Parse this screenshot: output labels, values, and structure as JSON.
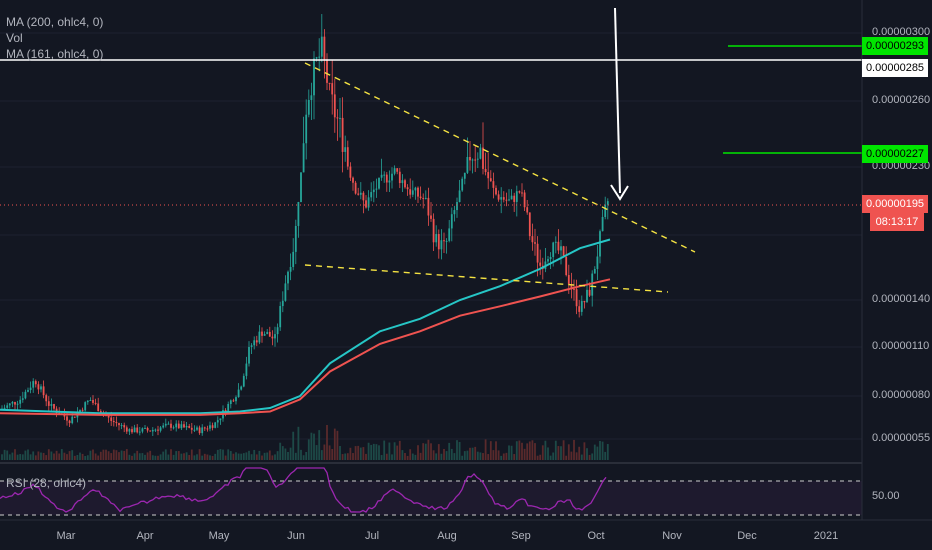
{
  "legend": {
    "ma200": "MA (200, ohlc4, 0)",
    "vol": "Vol",
    "ma161": "MA (161, ohlc4, 0)",
    "rsi": "RSI (28, ohlc4)"
  },
  "price_axis": {
    "ticks": [
      "0.00000300",
      "0.00000260",
      "0.00000230",
      "0.00000140",
      "0.00000110",
      "0.00000080",
      "0.00000055"
    ],
    "rsi_tick": "50.00"
  },
  "tags": {
    "target_high": "0.00000293",
    "resistance": "0.00000285",
    "target_mid": "0.00000227",
    "current_price": "0.00000195",
    "countdown": "08:13:17"
  },
  "time_axis": [
    "Mar",
    "Apr",
    "May",
    "Jun",
    "Jul",
    "Aug",
    "Sep",
    "Oct",
    "Nov",
    "Dec",
    "2021"
  ],
  "colors": {
    "background": "#131722",
    "up": "#26a69a",
    "down": "#ef5350",
    "ma200": "#26c6c6",
    "ma161": "#ef5350",
    "trendline": "#f5e342",
    "target": "#00e600",
    "rsi": "#9c27b0"
  },
  "chart_data": {
    "type": "line",
    "title": "",
    "x": [
      "Mar",
      "Apr",
      "May",
      "Jun",
      "Jul",
      "Aug",
      "Sep",
      "Oct"
    ],
    "series": [
      {
        "name": "price",
        "values": [
          7.4e-07,
          6.6e-07,
          7e-07,
          1.75e-06,
          1.95e-06,
          1.65e-06,
          1.5e-06,
          1.95e-06
        ]
      },
      {
        "name": "MA (200, ohlc4, 0)",
        "values": [
          7.1e-07,
          7.1e-07,
          7.2e-07,
          8e-07,
          1e-06,
          1.3e-06,
          1.5e-06,
          1.7e-06
        ]
      },
      {
        "name": "MA (161, ohlc4, 0)",
        "values": [
          7e-07,
          7e-07,
          7.1e-07,
          7.8e-07,
          9.5e-07,
          1.22e-06,
          1.4e-06,
          1.5e-06
        ]
      }
    ],
    "horizontal_lines": [
      2.93e-06,
      2.85e-06,
      2.27e-06,
      1.95e-06
    ],
    "ylim": [
      5e-07,
      3.1e-06
    ],
    "rsi": {
      "name": "RSI (28, ohlc4)",
      "level": 50.0
    }
  }
}
